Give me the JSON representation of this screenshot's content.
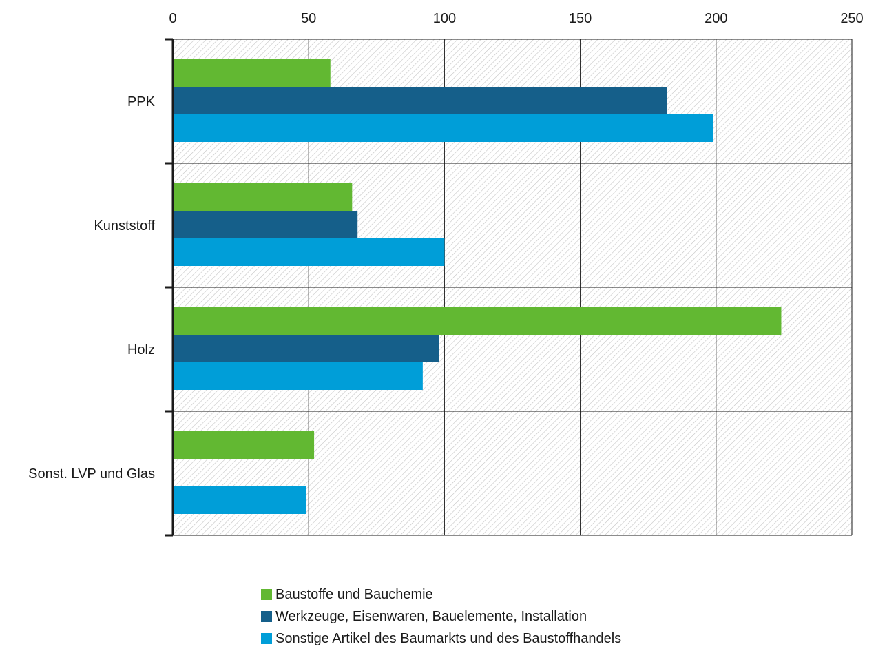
{
  "chart_data": {
    "type": "bar",
    "orientation": "horizontal",
    "categories": [
      "PPK",
      "Kunststoff",
      "Holz",
      "Sonst. LVP und Glas"
    ],
    "xlim": [
      0,
      250
    ],
    "x_ticks": [
      "0",
      "50",
      "100",
      "150",
      "200",
      "250"
    ],
    "x_axis_position": "top",
    "grid": true,
    "plot_background": "diagonal hatch",
    "legend_position": "bottom",
    "series": [
      {
        "name": "Baustoffe und Bauchemie",
        "color": "#62b832",
        "values": [
          58,
          66,
          224,
          52
        ]
      },
      {
        "name": "Werkzeuge, Eisenwaren, Bauelemente, Installation",
        "color": "#155f8a",
        "values": [
          182,
          68,
          98,
          0.5
        ]
      },
      {
        "name": "Sonstige Artikel des Baumarkts und des Baustoffhandels",
        "color": "#009ed8",
        "values": [
          199,
          100,
          92,
          49
        ]
      }
    ]
  }
}
